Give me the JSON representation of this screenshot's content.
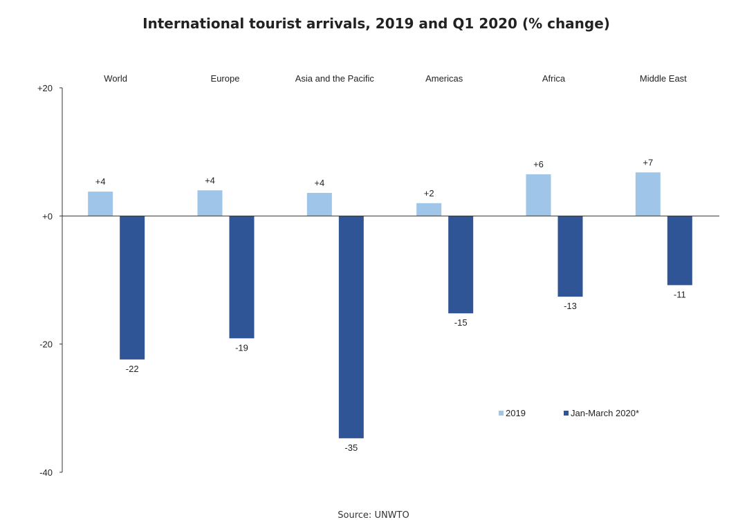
{
  "title": "International tourist arrivals, 2019 and Q1 2020 (% change)",
  "source": "Source: UNWTO",
  "colors": {
    "series_2019": "#9fc5e8",
    "series_2020": "#2f5597",
    "axis": "#333333"
  },
  "chart_data": {
    "type": "bar",
    "title": "International tourist arrivals, 2019 and Q1 2020 (% change)",
    "categories": [
      "World",
      "Europe",
      "Asia and the Pacific",
      "Americas",
      "Africa",
      "Middle East"
    ],
    "series": [
      {
        "name": "2019",
        "values": [
          3.8,
          4.0,
          3.6,
          2.0,
          6.5,
          6.8
        ],
        "labels": [
          "+4",
          "+4",
          "+4",
          "+2",
          "+6",
          "+7"
        ]
      },
      {
        "name": "Jan-March 2020*",
        "values": [
          -22.4,
          -19.1,
          -34.7,
          -15.2,
          -12.6,
          -10.8
        ],
        "labels": [
          "-22",
          "-19",
          "-35",
          "-15",
          "-13",
          "-11"
        ]
      }
    ],
    "ylim": [
      -40,
      20
    ],
    "yticks": [
      20,
      0,
      -20,
      -40
    ],
    "ytick_labels": [
      "+20",
      "+0",
      "-20",
      "-40"
    ],
    "legend_position": "lower-right",
    "grid": false
  }
}
